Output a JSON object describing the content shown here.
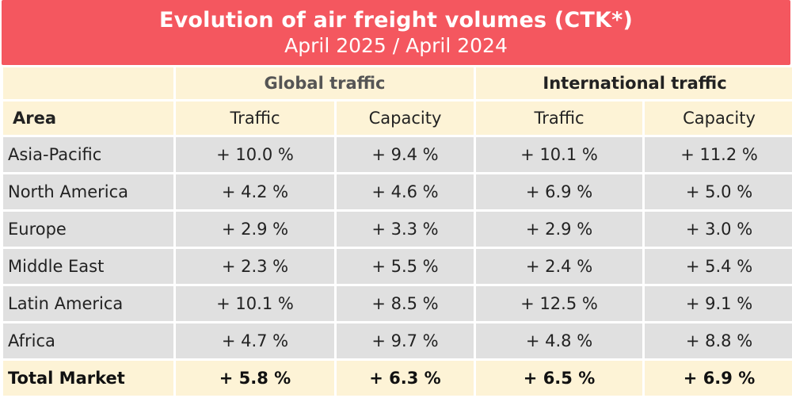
{
  "title": "Evolution of air freight volumes (CTK*)",
  "subtitle": "April 2025 / April 2024",
  "groups": {
    "global": "Global traffic",
    "international": "International traffic"
  },
  "headers": {
    "area": "Area",
    "global_traffic": "Traffic",
    "global_capacity": "Capacity",
    "intl_traffic": "Traffic",
    "intl_capacity": "Capacity"
  },
  "rows": [
    {
      "area": "Asia-Pacific",
      "g_traffic": "+ 10.0 %",
      "g_capacity": "+ 9.4 %",
      "i_traffic": "+ 10.1 %",
      "i_capacity": "+ 11.2 %"
    },
    {
      "area": "North America",
      "g_traffic": "+ 4.2 %",
      "g_capacity": "+ 4.6 %",
      "i_traffic": "+ 6.9 %",
      "i_capacity": "+ 5.0 %"
    },
    {
      "area": "Europe",
      "g_traffic": "+ 2.9 %",
      "g_capacity": "+ 3.3 %",
      "i_traffic": "+ 2.9 %",
      "i_capacity": "+ 3.0 %"
    },
    {
      "area": "Middle East",
      "g_traffic": "+ 2.3 %",
      "g_capacity": "+ 5.5 %",
      "i_traffic": "+ 2.4 %",
      "i_capacity": "+ 5.4 %"
    },
    {
      "area": "Latin America",
      "g_traffic": "+ 10.1 %",
      "g_capacity": "+ 8.5 %",
      "i_traffic": "+ 12.5 %",
      "i_capacity": "+ 9.1 %"
    },
    {
      "area": "Africa",
      "g_traffic": "+ 4.7 %",
      "g_capacity": "+ 9.7 %",
      "i_traffic": "+ 4.8 %",
      "i_capacity": "+ 8.8 %"
    }
  ],
  "total": {
    "area": "Total Market",
    "g_traffic": "+ 5.8 %",
    "g_capacity": "+ 6.3 %",
    "i_traffic": "+ 6.5 %",
    "i_capacity": "+ 6.9 %"
  },
  "colors": {
    "title_bg": "#f4575f",
    "header_bg": "#fdf3d6",
    "row_bg": "#e0e0e0"
  }
}
